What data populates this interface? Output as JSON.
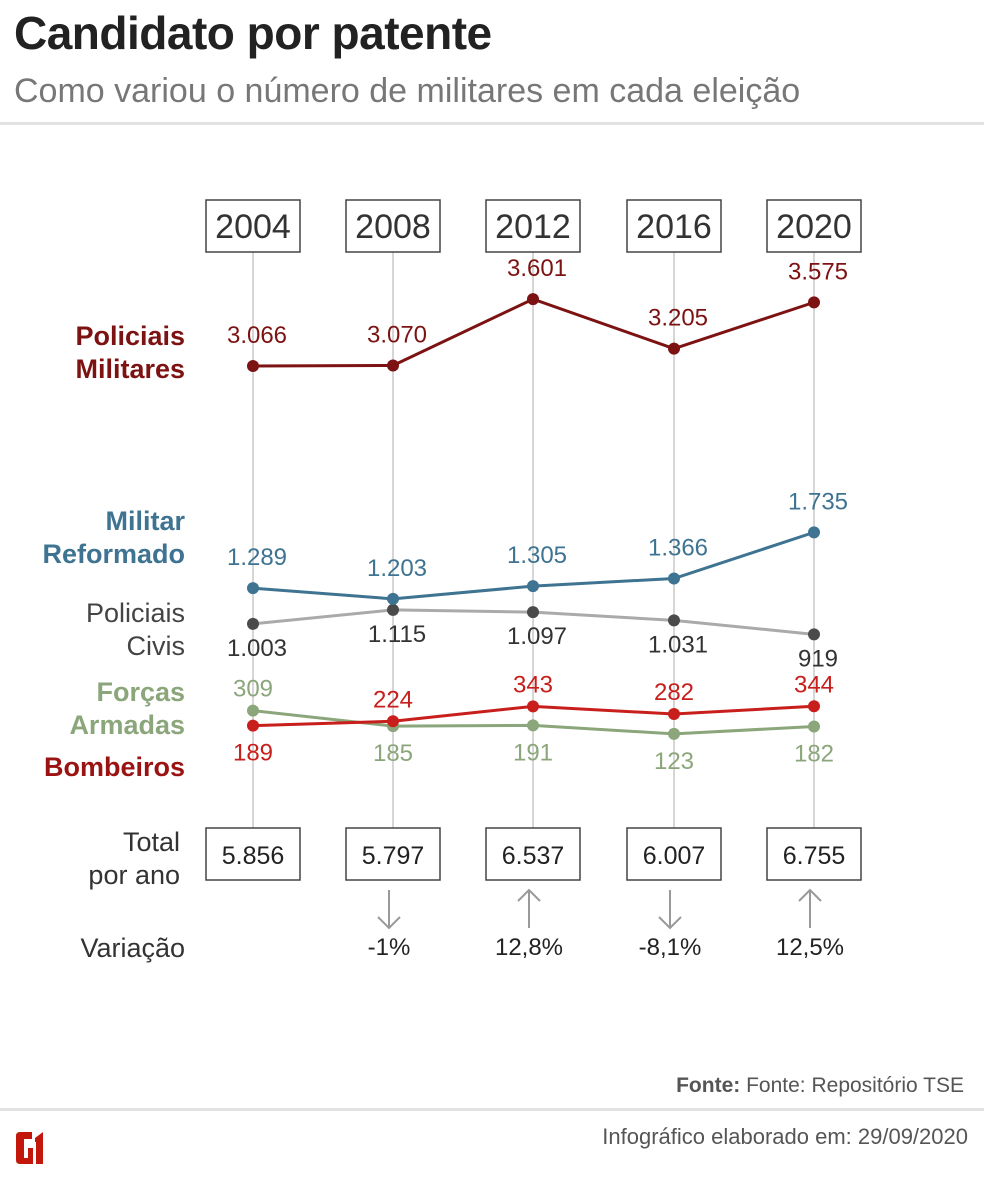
{
  "header": {
    "title": "Candidato por patente",
    "subtitle": "Como variou o número de militares em cada eleição"
  },
  "chart_data": {
    "type": "line",
    "title": "Candidato por patente",
    "subtitle": "Como variou o número de militares em cada eleição",
    "categories": [
      "2004",
      "2008",
      "2012",
      "2016",
      "2020"
    ],
    "ylim": [
      0,
      3601
    ],
    "grid": false,
    "legend": "left",
    "series": [
      {
        "name": "Policiais Militares",
        "name_lines": [
          "Policiais",
          "Militares"
        ],
        "values": [
          3066,
          3070,
          3601,
          3205,
          3575
        ],
        "labels": [
          "3.066",
          "3.070",
          "3.601",
          "3.205",
          "3.575"
        ],
        "color": "#7d1212",
        "dot_color": "#7d1212",
        "label_color": "#7d1212",
        "name_color": "#7d1212",
        "label_pos": [
          "above",
          "above",
          "above",
          "above",
          "above"
        ]
      },
      {
        "name": "Militar Reformado",
        "name_lines": [
          "Militar",
          "Reformado"
        ],
        "values": [
          1289,
          1203,
          1305,
          1366,
          1735
        ],
        "labels": [
          "1.289",
          "1.203",
          "1.305",
          "1.366",
          "1.735"
        ],
        "color": "#3e7391",
        "dot_color": "#3e7391",
        "label_color": "#3e7391",
        "name_color": "#3e7391",
        "label_pos": [
          "above",
          "above",
          "above",
          "above",
          "above"
        ]
      },
      {
        "name": "Policiais Civis",
        "name_lines": [
          "Policiais",
          "Civis"
        ],
        "values": [
          1003,
          1115,
          1097,
          1031,
          919
        ],
        "labels": [
          "1.003",
          "1.115",
          "1.097",
          "1.031",
          "919"
        ],
        "color": "#aaaaaa",
        "dot_color": "#4a4a4a",
        "label_color": "#333333",
        "name_color": "#444444",
        "label_pos": [
          "below",
          "below",
          "below",
          "below",
          "below"
        ]
      },
      {
        "name": "Forças Armadas",
        "name_lines": [
          "Forças",
          "Armadas"
        ],
        "values": [
          309,
          185,
          191,
          123,
          182
        ],
        "labels": [
          "309",
          "185",
          "191",
          "123",
          "182"
        ],
        "color": "#8ba67b",
        "dot_color": "#8ba67b",
        "label_color": "#8ba67b",
        "name_color": "#8ba67b",
        "label_pos": [
          "above",
          "below",
          "below",
          "below",
          "below"
        ]
      },
      {
        "name": "Bombeiros",
        "name_lines": [
          "Bombeiros"
        ],
        "values": [
          189,
          224,
          343,
          282,
          344
        ],
        "labels": [
          "189",
          "224",
          "343",
          "282",
          "344"
        ],
        "color": "#c81f1c",
        "dot_color": "#c81f1c",
        "label_color": "#c81f1c",
        "name_color": "#9b1212",
        "label_pos": [
          "below",
          "above",
          "above",
          "above",
          "above"
        ]
      }
    ],
    "totals_label": [
      "Total",
      "por ano"
    ],
    "totals": [
      "5.856",
      "5.797",
      "6.537",
      "6.007",
      "6.755"
    ],
    "variation_label": "Variação",
    "variation": [
      "",
      "-1%",
      "12,8%",
      "-8,1%",
      "12,5%"
    ],
    "variation_direction": [
      "",
      "down",
      "up",
      "down",
      "up"
    ]
  },
  "footer": {
    "source_label": "Fonte:",
    "source": "Fonte: Repositório TSE",
    "date": "Infográfico elaborado em: 29/09/2020",
    "logo": "G1",
    "logo_color": "#c4170c"
  }
}
